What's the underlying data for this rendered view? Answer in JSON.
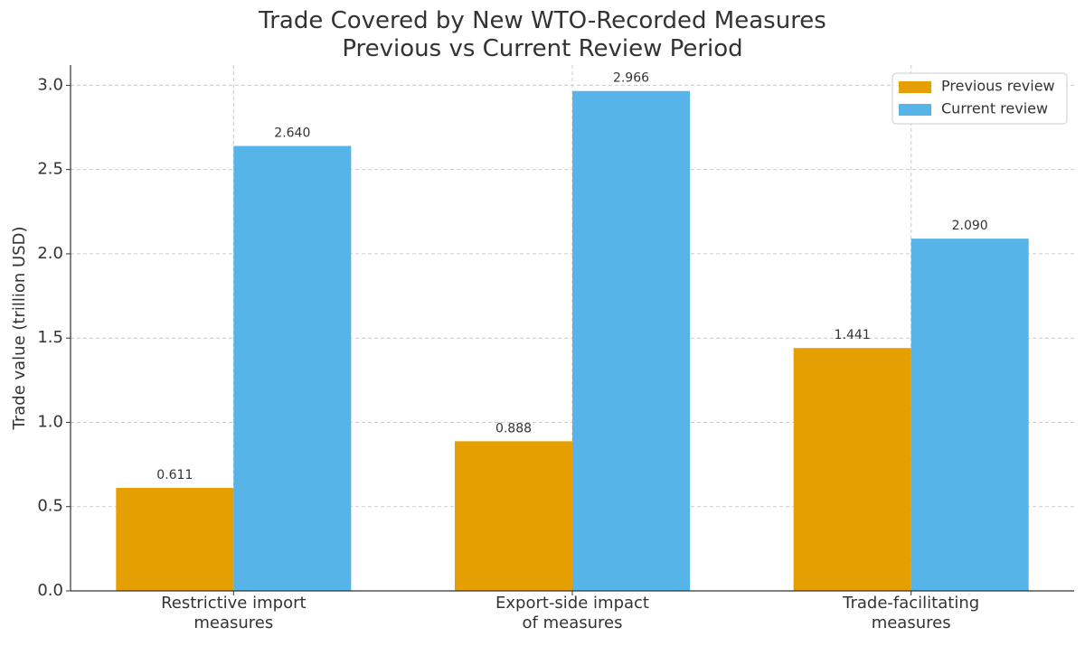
{
  "chart_data": {
    "type": "bar",
    "title": "Trade Covered by New WTO-Recorded Measures",
    "subtitle": "Previous vs Current Review Period",
    "y_label": "Trade value (trillion USD)",
    "categories": [
      "Restrictive import\nmeasures",
      "Export-side impact\nof measures",
      "Trade-facilitating\nmeasures"
    ],
    "series": [
      {
        "name": "Previous review",
        "color": "#E69F00",
        "values": [
          0.611,
          0.888,
          1.441
        ],
        "value_labels": [
          "0.611",
          "0.888",
          "1.441"
        ]
      },
      {
        "name": "Current review",
        "color": "#56B4E9",
        "values": [
          2.64,
          2.966,
          2.09
        ],
        "value_labels": [
          "2.640",
          "2.966",
          "2.090"
        ]
      }
    ],
    "ylim": [
      0,
      3.12
    ],
    "yticks": [
      {
        "value": 0,
        "label": "0.0"
      },
      0.5,
      {
        "value": 1,
        "label": "1.0"
      },
      1.5,
      {
        "value": 2,
        "label": "2.0"
      },
      2.5,
      {
        "value": 3,
        "label": "3.0"
      }
    ],
    "grid": true,
    "legend": "upper right"
  }
}
